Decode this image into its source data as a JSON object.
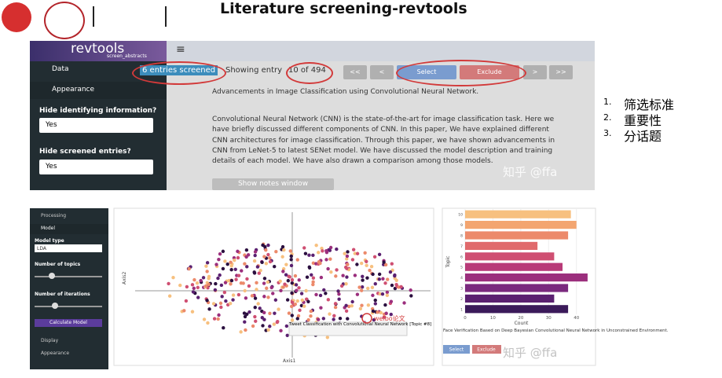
{
  "header": {
    "title": "Literature screening-revtools"
  },
  "sidebar": {
    "brand": "revtools",
    "subtitle": "screen_abstracts",
    "menu_icon": "≡",
    "menu": [
      "Data",
      "Appearance"
    ],
    "fields": [
      {
        "label": "Hide identifying information?",
        "value": "Yes"
      },
      {
        "label": "Hide screened entries?",
        "value": "Yes"
      }
    ]
  },
  "toolbar": {
    "status": "6 entries screened",
    "showing": "Showing entry",
    "position": "10 of 494",
    "buttons": [
      "<<",
      "<",
      "Select",
      "Exclude",
      ">",
      ">>"
    ]
  },
  "article": {
    "title": "Advancements in Image Classification using Convolutional Neural Network.",
    "abstract": "Convolutional Neural Network (CNN) is the state-of-the-art for image classification task. Here we have briefly discussed different components of CNN. In this paper, We have explained different CNN architectures for image classification. Through this paper, we have shown advancements in CNN from LeNet-5 to latest SENet model. We have discussed the model description and training details of each model. We have also drawn a comparison among those models.",
    "notes_button": "Show notes window"
  },
  "watermark": "知乎 @ffa",
  "list": [
    {
      "number": "1.",
      "text": "筛选标准"
    },
    {
      "number": "2.",
      "text": "重要性"
    },
    {
      "number": "3.",
      "text": "分话题"
    }
  ],
  "lower_sidebar": {
    "items": [
      "Processing",
      "Model"
    ],
    "model_type_label": "Model type",
    "model_type": "LDA",
    "topics_label": "Number of topics",
    "iterations_label": "Number of iterations",
    "calculate": "Calculate Model",
    "footer_items": [
      "Display",
      "Appearance"
    ]
  },
  "scatter": {
    "x_label": "Axis1",
    "y_label": "Axis2",
    "tooltip": "Tweet Classification with Convolutional Neural Network [Topic #8]",
    "annotation": "weibo论文"
  },
  "chart_data": {
    "type": "bar",
    "x_label": "Count",
    "y_label": "Topic",
    "categories": [
      "1",
      "2",
      "3",
      "4",
      "5",
      "6",
      "7",
      "8",
      "9",
      "10"
    ],
    "values": [
      37,
      32,
      37,
      44,
      35,
      32,
      26,
      37,
      40,
      38
    ],
    "colors": [
      "#3b1a5a",
      "#5a2070",
      "#7a2a7e",
      "#9b2f7d",
      "#b83a78",
      "#cf4f72",
      "#e06a6c",
      "#ec8a6b",
      "#f3a570",
      "#f7c07f"
    ],
    "xlim": [
      0,
      46
    ],
    "xticks": [
      0,
      10,
      20,
      30,
      40
    ],
    "grid": true
  },
  "bar_panel": {
    "title": "Face Verification Based on Deep Bayesian Convolutional Neural Network in Unconstrained Environment.",
    "buttons": [
      "Select",
      "Exclude"
    ]
  }
}
